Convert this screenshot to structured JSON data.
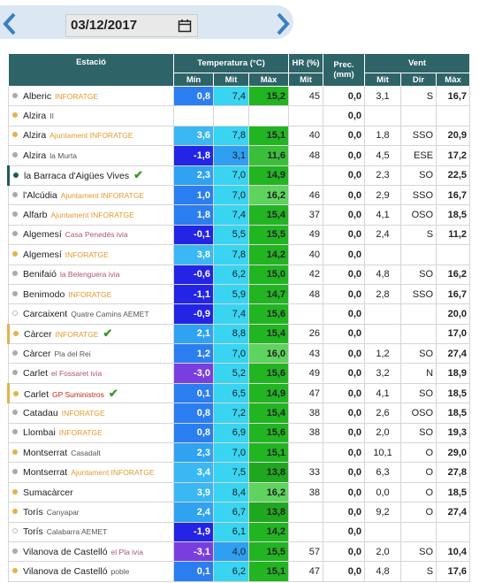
{
  "date": "03/12/2017",
  "table": {
    "header": [
      "Estació",
      "Temperatura (°C)",
      "HR (%)",
      "Prec. (mm)",
      "Vent"
    ],
    "subheader": [
      "Mín",
      "Mit",
      "Màx",
      "Mit",
      "Mit",
      "Dir",
      "Màx"
    ],
    "rows": [
      {
        "station": "Alberic",
        "source": "INFORATGE",
        "cells": [
          "0,8",
          "7,4",
          "15,2",
          "45",
          "0,0",
          "3,1",
          "S",
          "16,7"
        ]
      },
      {
        "station": "Alzira",
        "source": "II",
        "cells": [
          null,
          null,
          null,
          null,
          "0,0",
          null,
          null,
          null
        ]
      },
      {
        "station": "Alzira",
        "source": "Ajuntament INFORATGE",
        "cells": [
          "3,6",
          "7,8",
          "15,1",
          "40",
          "0,0",
          "1,8",
          "SSO",
          "20,9"
        ]
      },
      {
        "station": "Alzira",
        "source": "la Murta",
        "cells": [
          "-1,8",
          "3,1",
          "11,6",
          "48",
          "0,0",
          "4,5",
          "ESE",
          "17,2"
        ]
      },
      {
        "station": "la Barraca d'Aigües Vives",
        "source": null,
        "cells": [
          "2,3",
          "7,0",
          "14,9",
          null,
          "0,0",
          "2,3",
          "SO",
          "22,5"
        ]
      },
      {
        "station": "l'Alcúdia",
        "source": "Ajuntament INFORATGE",
        "cells": [
          "1,0",
          "7,0",
          "16,2",
          "46",
          "0,0",
          "2,9",
          "SSO",
          "16,7"
        ]
      },
      {
        "station": "Alfarb",
        "source": "Ajuntament INFORATGE",
        "cells": [
          "1,8",
          "7,4",
          "15,4",
          "37",
          "0,0",
          "4,1",
          "OSO",
          "18,5"
        ]
      },
      {
        "station": "Algemesí",
        "source": "Casa Penedés ivia",
        "cells": [
          "-0,1",
          "5,5",
          "15,5",
          "49",
          "0,0",
          "2,4",
          "S",
          "11,2"
        ]
      },
      {
        "station": "Algemesí",
        "source": "INFORATGE",
        "cells": [
          "3,8",
          "7,8",
          "14,2",
          "40",
          "0,0",
          null,
          null,
          null
        ]
      },
      {
        "station": "Benifaió",
        "source": "la Belenguera ivia",
        "cells": [
          "-0,6",
          "6,2",
          "15,0",
          "42",
          "0,0",
          "4,8",
          "SO",
          "16,2"
        ]
      },
      {
        "station": "Benimodo",
        "source": "INFORATGE",
        "cells": [
          "-1,1",
          "5,9",
          "14,7",
          "48",
          "0,0",
          "2,8",
          "SSO",
          "16,7"
        ]
      },
      {
        "station": "Carcaixent",
        "source": "Quatre Camins AEMET",
        "cells": [
          "-0,9",
          "7,4",
          "15,6",
          null,
          "0,0",
          null,
          null,
          "20,0"
        ]
      },
      {
        "station": "Càrcer",
        "source": "INFORATGE",
        "cells": [
          "2,1",
          "8,8",
          "15,4",
          "26",
          "0,0",
          null,
          null,
          "17,0"
        ]
      },
      {
        "station": "Càrcer",
        "source": "Pla del Rei",
        "cells": [
          "1,2",
          "7,0",
          "16,0",
          "43",
          "0,0",
          "1,2",
          "SO",
          "27,4"
        ]
      },
      {
        "station": "Carlet",
        "source": "el Fossaret ivia",
        "cells": [
          "-3,0",
          "5,2",
          "15,6",
          "49",
          "0,0",
          "3,2",
          "N",
          "18,9"
        ]
      },
      {
        "station": "Carlet",
        "source": "GP Suministros",
        "cells": [
          "0,1",
          "6,5",
          "14,9",
          "47",
          "0,0",
          "4,1",
          "SO",
          "18,5"
        ]
      },
      {
        "station": "Catadau",
        "source": "INFORATGE",
        "cells": [
          "0,8",
          "7,2",
          "15,4",
          "38",
          "0,0",
          "2,6",
          "OSO",
          "18,5"
        ]
      },
      {
        "station": "Llombai",
        "source": "INFORATGE",
        "cells": [
          "0,8",
          "6,9",
          "15,6",
          "38",
          "0,0",
          "2,0",
          "SO",
          "19,3"
        ]
      },
      {
        "station": "Montserrat",
        "source": "Casadalt",
        "cells": [
          "2,3",
          "7,0",
          "15,1",
          null,
          "0,0",
          "10,1",
          "O",
          "29,0"
        ]
      },
      {
        "station": "Montserrat",
        "source": "Ajuntament INFORATGE",
        "cells": [
          "3,4",
          "7,5",
          "13,8",
          "33",
          "0,0",
          "6,3",
          "O",
          "27,8"
        ]
      },
      {
        "station": "Sumacàrcer",
        "source": null,
        "cells": [
          "3,9",
          "8,4",
          "16,2",
          "38",
          "0,0",
          "0,0",
          "O",
          "18,5"
        ]
      },
      {
        "station": "Torís",
        "source": "Canyapar",
        "cells": [
          "2,4",
          "6,7",
          "13,8",
          null,
          "0,0",
          "9,2",
          "O",
          "27,4"
        ]
      },
      {
        "station": "Torís",
        "source": "Calabarra AEMET",
        "cells": [
          "-1,9",
          "6,1",
          "14,2",
          null,
          "0,0",
          null,
          null,
          null
        ]
      },
      {
        "station": "Vilanova de Castelló",
        "source": "el Pla ivia",
        "cells": [
          "-3,1",
          "4,0",
          "15,5",
          "57",
          "0,0",
          "2,0",
          "SO",
          "10,4"
        ]
      },
      {
        "station": "Vilanova de Castelló",
        "source": "poble",
        "cells": [
          "0,1",
          "6,2",
          "15,1",
          "47",
          "0,0",
          "4,8",
          "S",
          "17,6"
        ]
      }
    ]
  }
}
